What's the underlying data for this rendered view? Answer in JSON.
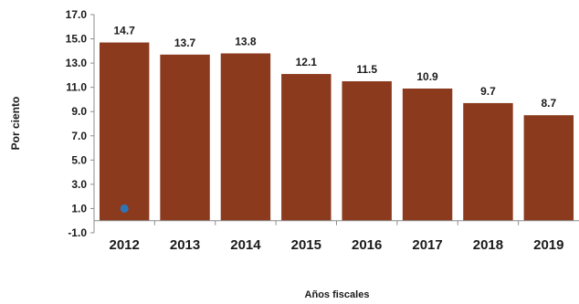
{
  "chart_data": {
    "type": "bar",
    "title": "",
    "xlabel": "Años fiscales",
    "ylabel": "Por ciento",
    "categories": [
      "2012",
      "2013",
      "2014",
      "2015",
      "2016",
      "2017",
      "2018",
      "2019"
    ],
    "values": [
      14.7,
      13.7,
      13.8,
      12.1,
      11.5,
      10.9,
      9.7,
      8.7
    ],
    "data_labels": [
      "14.7",
      "13.7",
      "13.8",
      "12.1",
      "11.5",
      "10.9",
      "9.7",
      "8.7"
    ],
    "y_ticks": [
      -1.0,
      1.0,
      3.0,
      5.0,
      7.0,
      9.0,
      11.0,
      13.0,
      15.0,
      17.0
    ],
    "y_tick_labels": [
      "-1.0",
      "1.0",
      "3.0",
      "5.0",
      "7.0",
      "9.0",
      "11.0",
      "13.0",
      "15.0",
      "17.0"
    ],
    "ylim": [
      -1.0,
      17.0
    ],
    "grid": false,
    "legend": "none",
    "marker": {
      "category": "2012",
      "value": 1.0
    },
    "colors": {
      "bar": "#8b3a1e",
      "marker": "#2e75b6",
      "axis": "#8c8c8c"
    }
  }
}
